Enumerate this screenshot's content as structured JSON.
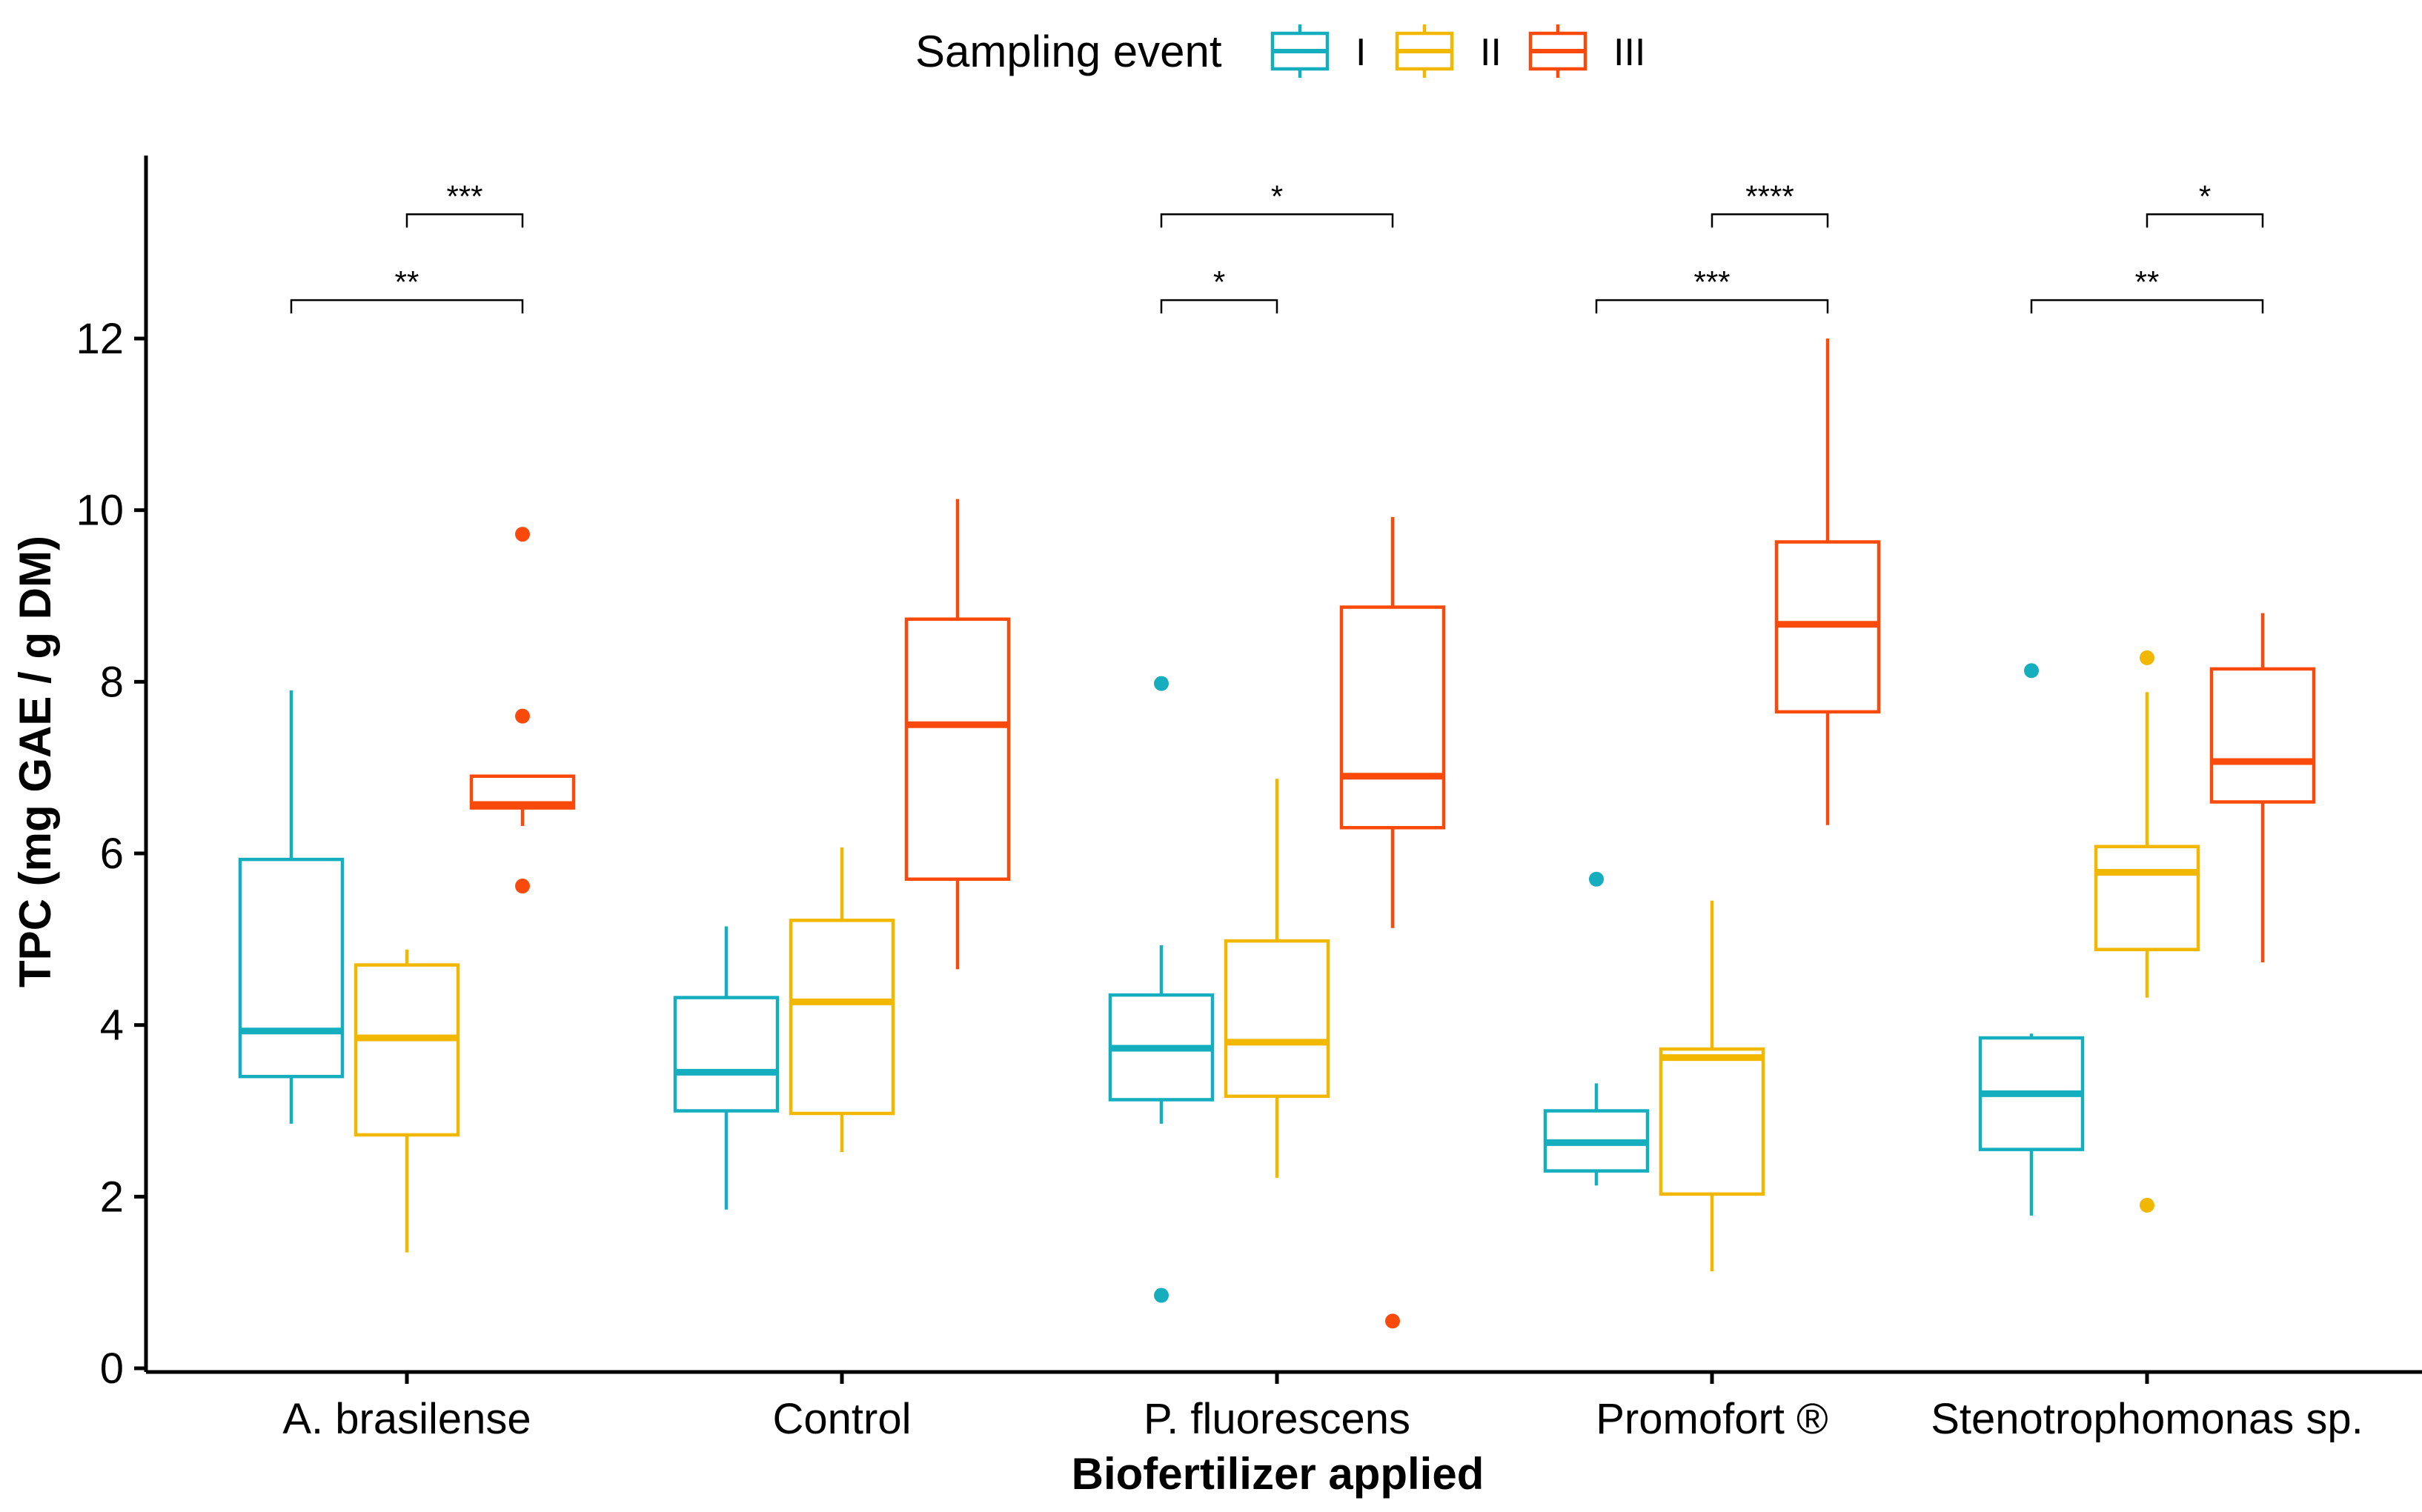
{
  "chart_data": {
    "type": "boxplot",
    "xlabel": "Biofertilizer applied",
    "ylabel": "TPC (mg GAE / g DM)",
    "ylim": [
      0,
      13.6
    ],
    "yticks": [
      0,
      2,
      4,
      6,
      8,
      10,
      12
    ],
    "categories": [
      "A. brasilense",
      "Control",
      "P. fluorescens",
      "Promofort ®",
      "Stenotrophomonas sp."
    ],
    "legend": {
      "title": "Sampling event",
      "position": "top",
      "entries": [
        {
          "name": "I",
          "color": "#14aebe"
        },
        {
          "name": "II",
          "color": "#f2b700"
        },
        {
          "name": "III",
          "color": "#fa4a0b"
        }
      ]
    },
    "series": [
      {
        "name": "I",
        "color": "#14aebe",
        "boxes": [
          {
            "category": "A. brasilense",
            "whisker_low": 2.85,
            "q1": 3.4,
            "median": 3.93,
            "q3": 5.93,
            "whisker_high": 7.9,
            "outliers": []
          },
          {
            "category": "Control",
            "whisker_low": 1.85,
            "q1": 3.0,
            "median": 3.45,
            "q3": 4.32,
            "whisker_high": 5.15,
            "outliers": []
          },
          {
            "category": "P. fluorescens",
            "whisker_low": 2.85,
            "q1": 3.13,
            "median": 3.73,
            "q3": 4.35,
            "whisker_high": 4.93,
            "outliers": [
              7.98,
              0.85
            ]
          },
          {
            "category": "Promofort ®",
            "whisker_low": 2.13,
            "q1": 2.3,
            "median": 2.63,
            "q3": 3.0,
            "whisker_high": 3.32,
            "outliers": [
              5.7
            ]
          },
          {
            "category": "Stenotrophomonas sp.",
            "whisker_low": 1.78,
            "q1": 2.55,
            "median": 3.2,
            "q3": 3.85,
            "whisker_high": 3.9,
            "outliers": [
              8.13
            ]
          }
        ]
      },
      {
        "name": "II",
        "color": "#f2b700",
        "boxes": [
          {
            "category": "A. brasilense",
            "whisker_low": 1.35,
            "q1": 2.72,
            "median": 3.85,
            "q3": 4.7,
            "whisker_high": 4.88,
            "outliers": []
          },
          {
            "category": "Control",
            "whisker_low": 2.52,
            "q1": 2.97,
            "median": 4.27,
            "q3": 5.22,
            "whisker_high": 6.07,
            "outliers": []
          },
          {
            "category": "P. fluorescens",
            "whisker_low": 2.22,
            "q1": 3.17,
            "median": 3.8,
            "q3": 4.98,
            "whisker_high": 6.87,
            "outliers": []
          },
          {
            "category": "Promofort ®",
            "whisker_low": 1.13,
            "q1": 2.03,
            "median": 3.62,
            "q3": 3.72,
            "whisker_high": 5.45,
            "outliers": []
          },
          {
            "category": "Stenotrophomonas sp.",
            "whisker_low": 4.32,
            "q1": 4.88,
            "median": 5.78,
            "q3": 6.08,
            "whisker_high": 7.88,
            "outliers": [
              8.28,
              1.9
            ]
          }
        ]
      },
      {
        "name": "III",
        "color": "#fa4a0b",
        "boxes": [
          {
            "category": "A. brasilense",
            "whisker_low": 6.32,
            "q1": 6.53,
            "median": 6.57,
            "q3": 6.9,
            "whisker_high": 6.9,
            "outliers": [
              9.72,
              7.6,
              5.62
            ]
          },
          {
            "category": "Control",
            "whisker_low": 4.65,
            "q1": 5.7,
            "median": 7.5,
            "q3": 8.73,
            "whisker_high": 10.13,
            "outliers": []
          },
          {
            "category": "P. fluorescens",
            "whisker_low": 5.13,
            "q1": 6.3,
            "median": 6.9,
            "q3": 8.87,
            "whisker_high": 9.92,
            "outliers": [
              0.55
            ]
          },
          {
            "category": "Promofort ®",
            "whisker_low": 6.33,
            "q1": 7.65,
            "median": 8.67,
            "q3": 9.63,
            "whisker_high": 12.0,
            "outliers": []
          },
          {
            "category": "Stenotrophomonas sp.",
            "whisker_low": 4.73,
            "q1": 6.6,
            "median": 7.07,
            "q3": 8.15,
            "whisker_high": 8.8,
            "outliers": []
          }
        ]
      }
    ],
    "significance": [
      {
        "category": "A. brasilense",
        "from": "I",
        "to": "III",
        "label": "**",
        "y": 12.5
      },
      {
        "category": "A. brasilense",
        "from": "II",
        "to": "III",
        "label": "***",
        "y": 13.5
      },
      {
        "category": "P. fluorescens",
        "from": "I",
        "to": "II",
        "label": "*",
        "y": 12.5
      },
      {
        "category": "P. fluorescens",
        "from": "I",
        "to": "III",
        "label": "*",
        "y": 13.5
      },
      {
        "category": "Promofort ®",
        "from": "I",
        "to": "III",
        "label": "***",
        "y": 12.5
      },
      {
        "category": "Promofort ®",
        "from": "II",
        "to": "III",
        "label": "****",
        "y": 13.5
      },
      {
        "category": "Stenotrophomonas sp.",
        "from": "I",
        "to": "III",
        "label": "**",
        "y": 12.5
      },
      {
        "category": "Stenotrophomonas sp.",
        "from": "II",
        "to": "III",
        "label": "*",
        "y": 13.5
      }
    ]
  }
}
